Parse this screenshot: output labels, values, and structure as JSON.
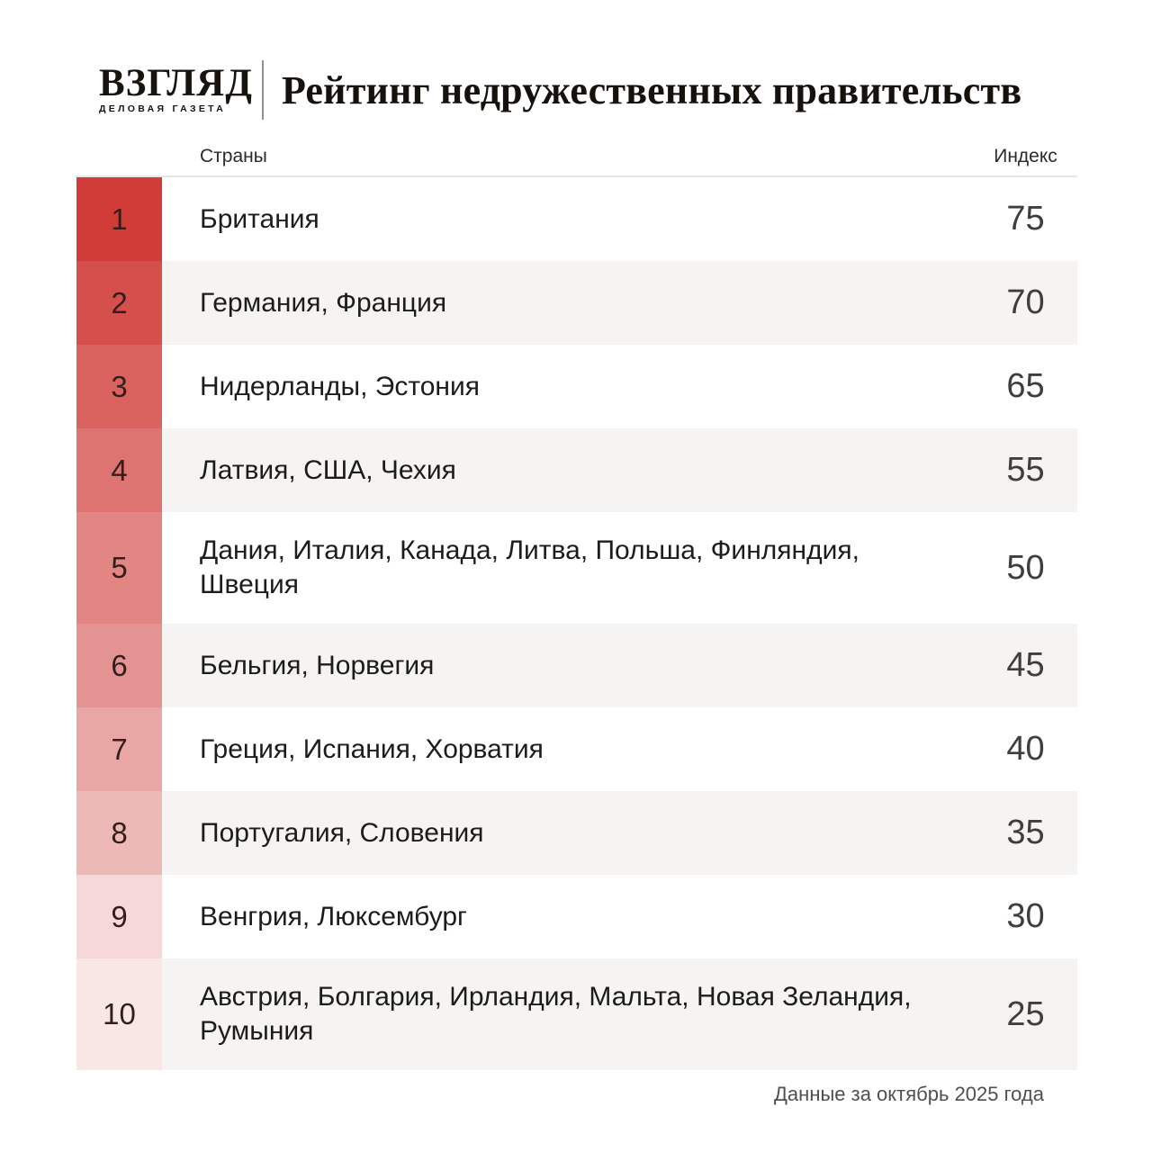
{
  "header": {
    "logo": {
      "name": "ВЗГЛЯД",
      "tagline": "ДЕЛОВАЯ ГАЗЕТА"
    },
    "title": "Рейтинг недружественных правительств"
  },
  "chart_data": {
    "type": "table",
    "title": "Рейтинг недружественных правительств",
    "columns": [
      "Страны",
      "Индекс"
    ],
    "index_range": [
      25,
      75
    ],
    "rows": [
      {
        "rank": "1",
        "countries": "Британия",
        "index": 75,
        "color": "#d23c38"
      },
      {
        "rank": "2",
        "countries": "Германия, Франция",
        "index": 70,
        "color": "#d5504c"
      },
      {
        "rank": "3",
        "countries": "Нидерланды, Эстония",
        "index": 65,
        "color": "#da635f"
      },
      {
        "rank": "4",
        "countries": "Латвия, США, Чехия",
        "index": 55,
        "color": "#dd7471"
      },
      {
        "rank": "5",
        "countries": "Дания, Италия, Канада, Литва, Польша, Финляндия, Швеция",
        "index": 50,
        "color": "#e18683"
      },
      {
        "rank": "6",
        "countries": "Бельгия, Норвегия",
        "index": 45,
        "color": "#e39492"
      },
      {
        "rank": "7",
        "countries": "Греция, Испания, Хорватия",
        "index": 40,
        "color": "#e8a7a5"
      },
      {
        "rank": "8",
        "countries": "Португалия, Словения",
        "index": 35,
        "color": "#edb9b7"
      },
      {
        "rank": "9",
        "countries": "Венгрия, Люксембург",
        "index": 30,
        "color": "#f5d8d7"
      },
      {
        "rank": "10",
        "countries": "Австрия, Болгария, Ирландия, Мальта, Новая Зеландия, Румыния",
        "index": 25,
        "color": "#f9e7e6"
      }
    ]
  },
  "colors": {
    "accent": "#d23c38",
    "row_alt": "#f6f4f2"
  },
  "footer": {
    "note": "Данные за октябрь 2025 года"
  }
}
